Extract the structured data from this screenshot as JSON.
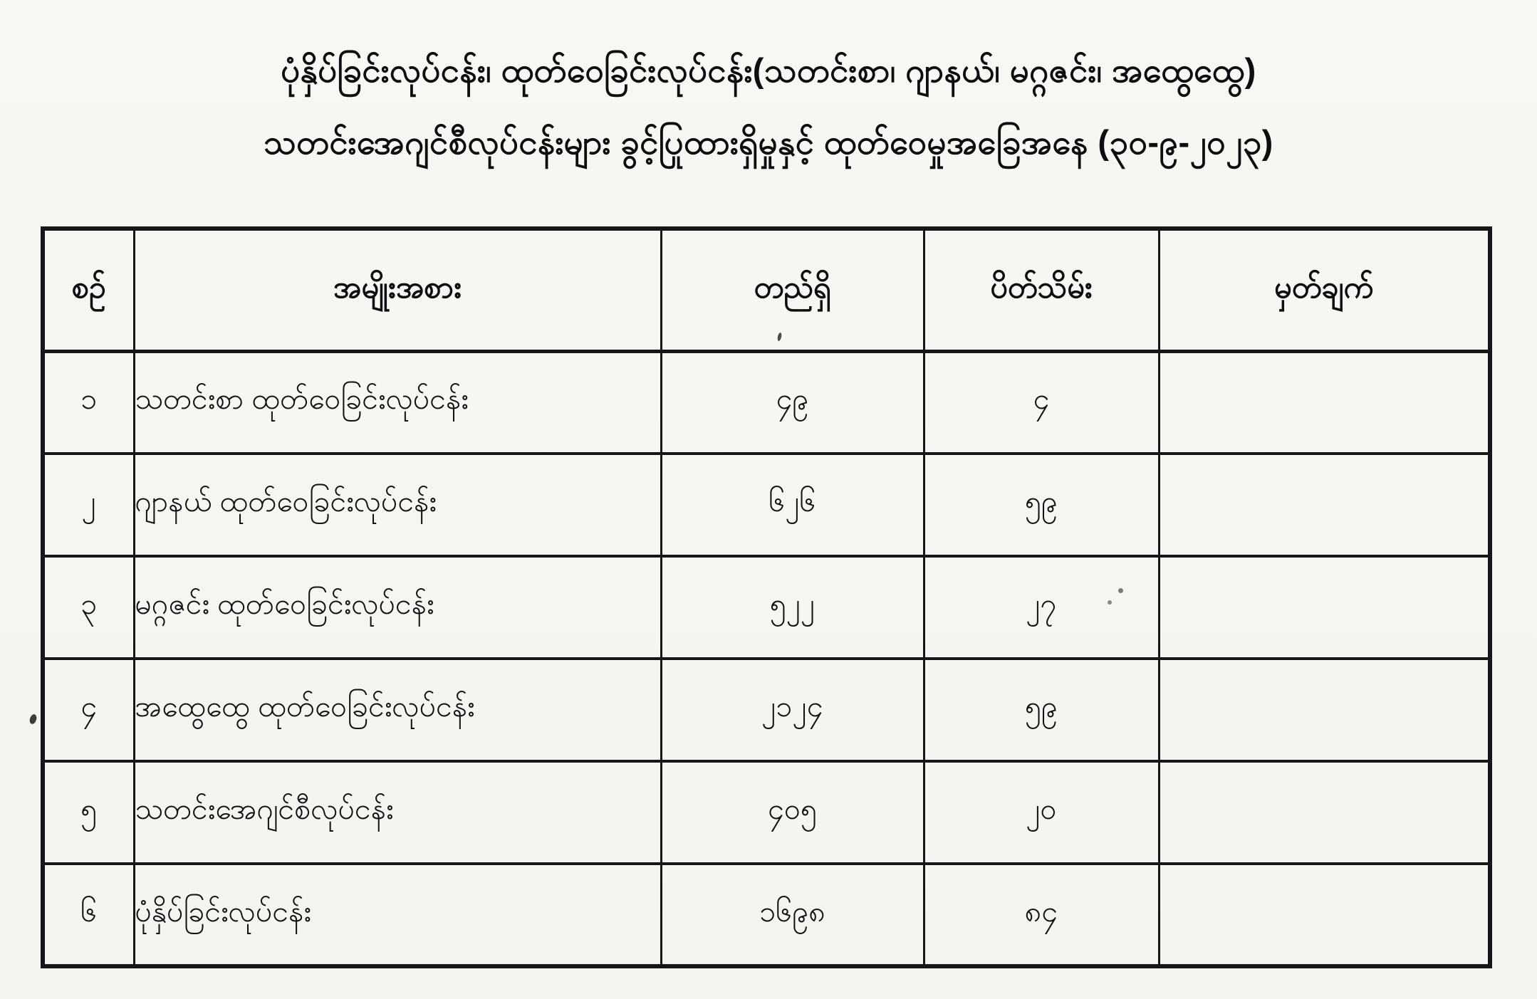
{
  "page": {
    "title_line1": "ပုံနှိပ်ခြင်းလုပ်ငန်း၊ ထုတ်ဝေခြင်းလုပ်ငန်း(သတင်းစာ၊ ဂျာနယ်၊ မဂ္ဂဇင်း၊ အထွေထွေ)",
    "title_line2": "သတင်းအေဂျင်စီလုပ်ငန်းများ ခွင့်ပြုထားရှိမှုနှင့် ထုတ်ဝေမှုအခြေအနေ (၃၀-၉-၂၀၂၃)",
    "report_date_burmese": "၃၀-၉-၂၀၂၃"
  },
  "table": {
    "headers": [
      "စဉ်",
      "အမျိုးအစား",
      "တည်ရှိ",
      "ပိတ်သိမ်း",
      "မှတ်ချက်"
    ],
    "rows": [
      {
        "no": "၁",
        "type": "သတင်းစာ ထုတ်ဝေခြင်းလုပ်ငန်း",
        "existing": "၄၉",
        "closed": "၄",
        "remark": ""
      },
      {
        "no": "၂",
        "type": "ဂျာနယ် ထုတ်ဝေခြင်းလုပ်ငန်း",
        "existing": "၆၂၆",
        "closed": "၅၉",
        "remark": ""
      },
      {
        "no": "၃",
        "type": "မဂ္ဂဇင်း ထုတ်ဝေခြင်းလုပ်ငန်း",
        "existing": "၅၂၂",
        "closed": "၂၇",
        "remark": ""
      },
      {
        "no": "၄",
        "type": "အထွေထွေ ထုတ်ဝေခြင်းလုပ်ငန်း",
        "existing": "၂၁၂၄",
        "closed": "၅၉",
        "remark": ""
      },
      {
        "no": "၅",
        "type": "သတင်းအေဂျင်စီလုပ်ငန်း",
        "existing": "၄၀၅",
        "closed": "၂၀",
        "remark": ""
      },
      {
        "no": "၆",
        "type": "ပုံနှိပ်ခြင်းလုပ်ငန်း",
        "existing": "၁၆၉၈",
        "closed": "၈၄",
        "remark": ""
      }
    ]
  },
  "colors": {
    "paper": "#f7f6f2",
    "ink": "#141414",
    "border": "#161616"
  }
}
